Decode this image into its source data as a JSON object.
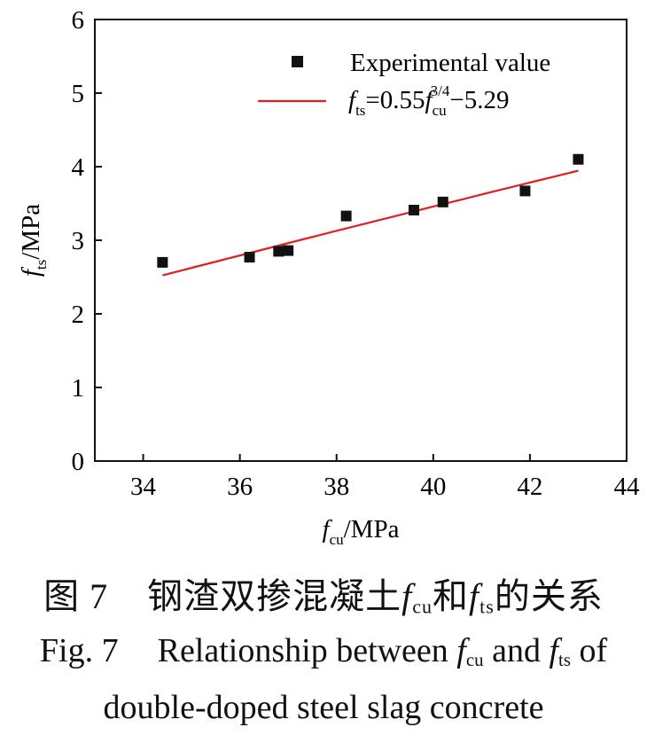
{
  "chart_data": {
    "type": "scatter",
    "xlim": [
      33,
      44
    ],
    "ylim": [
      0,
      6
    ],
    "x_ticks": [
      "34",
      "36",
      "38",
      "40",
      "42",
      "44"
    ],
    "y_ticks": [
      "0",
      "1",
      "2",
      "3",
      "4",
      "5",
      "6"
    ],
    "xlabel": {
      "main": "f",
      "sub": "cu",
      "unit": "/MPa"
    },
    "ylabel": {
      "main": "f",
      "sub": "ts",
      "unit": "/MPa"
    },
    "series": [
      {
        "name": "Experimental value",
        "marker": "square",
        "color": "#111111",
        "x": [
          34.4,
          36.2,
          36.8,
          37.0,
          38.2,
          39.6,
          40.2,
          41.9,
          43.0
        ],
        "y": [
          2.7,
          2.77,
          2.85,
          2.86,
          3.33,
          3.41,
          3.52,
          3.67,
          4.1
        ]
      }
    ],
    "fit": {
      "color": "#e02020",
      "label": {
        "f1": "f",
        "s1": "ts",
        "eq": "=0.55",
        "f2": "f",
        "s2": "cu",
        "exp": "3/4",
        "tail": "−5.29"
      },
      "coef": 0.55,
      "power": 0.75,
      "intercept": -5.29,
      "x_range": [
        34.4,
        43.0
      ]
    },
    "legend_position": "top-right",
    "grid": false
  },
  "caption": {
    "cn_prefix": "图 7",
    "cn_text1": "钢渣双掺混凝土",
    "cn_f1": "f",
    "cn_s1": "cu",
    "cn_and": "和",
    "cn_f2": "f",
    "cn_s2": "ts",
    "cn_text2": "的关系",
    "en_prefix": "Fig. 7",
    "en_text1": "Relationship between ",
    "en_f1": "f",
    "en_s1": "cu",
    "en_and": " and ",
    "en_f2": "f",
    "en_s2": "ts",
    "en_of": " of",
    "en_line2": "double-doped steel slag concrete"
  }
}
